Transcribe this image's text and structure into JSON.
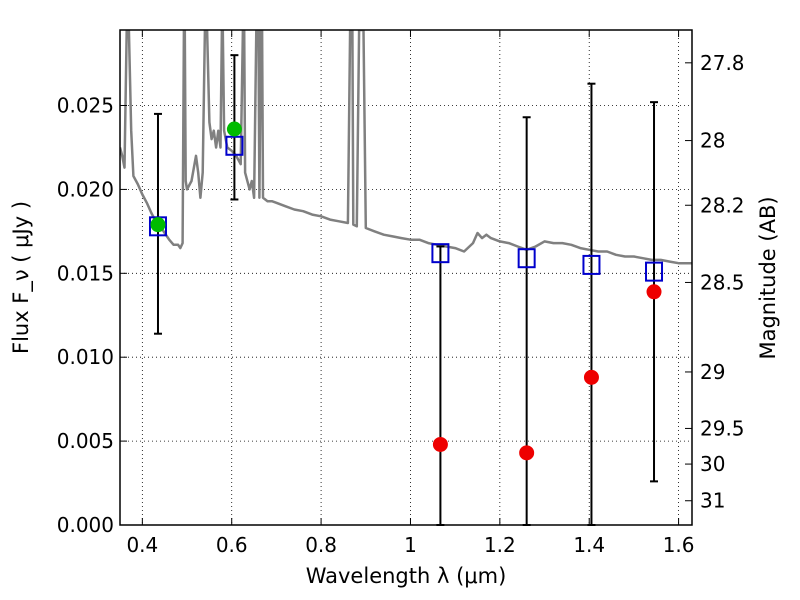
{
  "chart_data": {
    "type": "scatter",
    "xlabel": "Wavelength  λ (μm)",
    "ylabel": "Flux  F_ν  ( μJy )",
    "ylabel_right": "Magnitude (AB)",
    "xlim": [
      0.35,
      1.63
    ],
    "ylim": [
      0.0,
      0.0295
    ],
    "grid": true,
    "x_ticks": [
      {
        "value": 0.4,
        "label": "0.4"
      },
      {
        "value": 0.6,
        "label": "0.6"
      },
      {
        "value": 0.8,
        "label": "0.8"
      },
      {
        "value": 1.0,
        "label": "1"
      },
      {
        "value": 1.2,
        "label": "1.2"
      },
      {
        "value": 1.4,
        "label": "1.4"
      },
      {
        "value": 1.6,
        "label": "1.6"
      }
    ],
    "y_ticks": [
      {
        "value": 0.0,
        "label": "0.000"
      },
      {
        "value": 0.005,
        "label": "0.005"
      },
      {
        "value": 0.01,
        "label": "0.010"
      },
      {
        "value": 0.015,
        "label": "0.015"
      },
      {
        "value": 0.02,
        "label": "0.020"
      },
      {
        "value": 0.025,
        "label": "0.025"
      }
    ],
    "right_ticks": [
      {
        "mag": 27.8,
        "label": "27.8"
      },
      {
        "mag": 28.0,
        "label": "28"
      },
      {
        "mag": 28.2,
        "label": "28.2"
      },
      {
        "mag": 28.5,
        "label": "28.5"
      },
      {
        "mag": 29.0,
        "label": "29"
      },
      {
        "mag": 29.5,
        "label": "29.5"
      },
      {
        "mag": 30.0,
        "label": "30"
      },
      {
        "mag": 31.0,
        "label": "31"
      }
    ],
    "series": [
      {
        "kind": "line",
        "color": "#808080",
        "points": [
          [
            0.35,
            0.0225
          ],
          [
            0.355,
            0.022
          ],
          [
            0.36,
            0.0213
          ],
          [
            0.365,
            0.0295
          ],
          [
            0.37,
            0.0295
          ],
          [
            0.375,
            0.0235
          ],
          [
            0.38,
            0.0208
          ],
          [
            0.39,
            0.0203
          ],
          [
            0.4,
            0.0197
          ],
          [
            0.41,
            0.0192
          ],
          [
            0.42,
            0.0186
          ],
          [
            0.43,
            0.0181
          ],
          [
            0.44,
            0.0178
          ],
          [
            0.45,
            0.0174
          ],
          [
            0.46,
            0.017
          ],
          [
            0.47,
            0.0167
          ],
          [
            0.48,
            0.0167
          ],
          [
            0.485,
            0.0165
          ],
          [
            0.49,
            0.0168
          ],
          [
            0.493,
            0.0295
          ],
          [
            0.495,
            0.0295
          ],
          [
            0.497,
            0.0205
          ],
          [
            0.5,
            0.02
          ],
          [
            0.51,
            0.0205
          ],
          [
            0.52,
            0.022
          ],
          [
            0.525,
            0.021
          ],
          [
            0.53,
            0.0195
          ],
          [
            0.535,
            0.021
          ],
          [
            0.54,
            0.0295
          ],
          [
            0.545,
            0.0295
          ],
          [
            0.55,
            0.024
          ],
          [
            0.555,
            0.023
          ],
          [
            0.56,
            0.0235
          ],
          [
            0.565,
            0.0225
          ],
          [
            0.57,
            0.0235
          ],
          [
            0.575,
            0.0225
          ],
          [
            0.578,
            0.0295
          ],
          [
            0.58,
            0.0295
          ],
          [
            0.583,
            0.0235
          ],
          [
            0.59,
            0.0225
          ],
          [
            0.6,
            0.0223
          ],
          [
            0.61,
            0.022
          ],
          [
            0.62,
            0.0215
          ],
          [
            0.625,
            0.0295
          ],
          [
            0.628,
            0.0295
          ],
          [
            0.63,
            0.021
          ],
          [
            0.64,
            0.02
          ],
          [
            0.645,
            0.0205
          ],
          [
            0.65,
            0.0195
          ],
          [
            0.655,
            0.0295
          ],
          [
            0.66,
            0.0295
          ],
          [
            0.662,
            0.0195
          ],
          [
            0.665,
            0.0295
          ],
          [
            0.668,
            0.0295
          ],
          [
            0.67,
            0.0195
          ],
          [
            0.68,
            0.0193
          ],
          [
            0.69,
            0.0193
          ],
          [
            0.7,
            0.0192
          ],
          [
            0.72,
            0.019
          ],
          [
            0.74,
            0.0188
          ],
          [
            0.76,
            0.0187
          ],
          [
            0.78,
            0.0185
          ],
          [
            0.8,
            0.0184
          ],
          [
            0.82,
            0.0182
          ],
          [
            0.84,
            0.0181
          ],
          [
            0.86,
            0.018
          ],
          [
            0.865,
            0.0295
          ],
          [
            0.87,
            0.0295
          ],
          [
            0.872,
            0.0179
          ],
          [
            0.88,
            0.0178
          ],
          [
            0.885,
            0.0295
          ],
          [
            0.89,
            0.0295
          ],
          [
            0.895,
            0.0295
          ],
          [
            0.9,
            0.0177
          ],
          [
            0.92,
            0.0175
          ],
          [
            0.94,
            0.0173
          ],
          [
            0.96,
            0.0172
          ],
          [
            0.98,
            0.0171
          ],
          [
            1.0,
            0.017
          ],
          [
            1.02,
            0.017
          ],
          [
            1.04,
            0.0168
          ],
          [
            1.06,
            0.0167
          ],
          [
            1.08,
            0.0166
          ],
          [
            1.1,
            0.0165
          ],
          [
            1.12,
            0.0163
          ],
          [
            1.14,
            0.0168
          ],
          [
            1.15,
            0.0174
          ],
          [
            1.16,
            0.0171
          ],
          [
            1.17,
            0.0173
          ],
          [
            1.18,
            0.0171
          ],
          [
            1.2,
            0.0169
          ],
          [
            1.22,
            0.0168
          ],
          [
            1.24,
            0.0166
          ],
          [
            1.26,
            0.0164
          ],
          [
            1.28,
            0.0166
          ],
          [
            1.3,
            0.0169
          ],
          [
            1.32,
            0.0168
          ],
          [
            1.34,
            0.0168
          ],
          [
            1.36,
            0.0167
          ],
          [
            1.38,
            0.0165
          ],
          [
            1.4,
            0.0164
          ],
          [
            1.42,
            0.0163
          ],
          [
            1.44,
            0.0163
          ],
          [
            1.46,
            0.0161
          ],
          [
            1.48,
            0.016
          ],
          [
            1.5,
            0.016
          ],
          [
            1.52,
            0.0159
          ],
          [
            1.54,
            0.0158
          ],
          [
            1.56,
            0.0158
          ],
          [
            1.58,
            0.0157
          ],
          [
            1.6,
            0.0156
          ],
          [
            1.63,
            0.0156
          ]
        ]
      },
      {
        "kind": "squares",
        "color": "#0000cc",
        "points": [
          {
            "x": 0.435,
            "y": 0.0178,
            "err_low": 0.0114,
            "err_high": 0.0245
          },
          {
            "x": 0.606,
            "y": 0.0226,
            "err_low": 0.0194,
            "err_high": 0.028
          },
          {
            "x": 1.067,
            "y": 0.0162,
            "err_low": 0.0,
            "err_high": 0.0166
          },
          {
            "x": 1.26,
            "y": 0.0159,
            "err_low": 0.0,
            "err_high": 0.0243
          },
          {
            "x": 1.405,
            "y": 0.0155,
            "err_low": 0.0,
            "err_high": 0.0263
          },
          {
            "x": 1.545,
            "y": 0.0151,
            "err_low": 0.0026,
            "err_high": 0.0252
          }
        ]
      },
      {
        "kind": "circles",
        "color": "#00bb00",
        "points": [
          {
            "x": 0.435,
            "y": 0.0179
          },
          {
            "x": 0.606,
            "y": 0.0236
          }
        ]
      },
      {
        "kind": "circles",
        "color": "#ee0000",
        "points": [
          {
            "x": 1.067,
            "y": 0.0048
          },
          {
            "x": 1.26,
            "y": 0.0043
          },
          {
            "x": 1.405,
            "y": 0.0088
          },
          {
            "x": 1.545,
            "y": 0.0139
          }
        ]
      }
    ]
  }
}
